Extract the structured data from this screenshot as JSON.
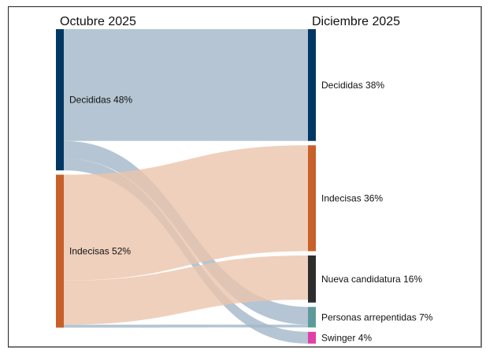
{
  "chart_data": {
    "type": "sankey",
    "title": "",
    "columns": [
      "Octubre 2025",
      "Diciembre 2025"
    ],
    "nodes": [
      {
        "id": "oct_decididas",
        "column": 0,
        "label": "Decididas 48%",
        "value": 48,
        "color": "#003863"
      },
      {
        "id": "oct_indecisas",
        "column": 0,
        "label": "Indecisas 52%",
        "value": 52,
        "color": "#c8602a"
      },
      {
        "id": "dic_decididas",
        "column": 1,
        "label": "Decididas 38%",
        "value": 38,
        "color": "#003863"
      },
      {
        "id": "dic_indecisas",
        "column": 1,
        "label": "Indecisas 36%",
        "value": 36,
        "color": "#c8602a"
      },
      {
        "id": "dic_nueva",
        "column": 1,
        "label": "Nueva candidatura 16%",
        "value": 16,
        "color": "#2d2d2d"
      },
      {
        "id": "dic_arrepentidas",
        "column": 1,
        "label": "Personas arrepentidas 7%",
        "value": 7,
        "color": "#5f9a9a"
      },
      {
        "id": "dic_swinger",
        "column": 1,
        "label": "Swinger 4%",
        "value": 4,
        "color": "#e040a8"
      }
    ],
    "links": [
      {
        "source": "oct_decididas",
        "target": "dic_decididas",
        "value": 38,
        "color": "#a3b6c8"
      },
      {
        "source": "oct_decididas",
        "target": "dic_arrepentidas",
        "value": 6,
        "color": "#a3b6c8"
      },
      {
        "source": "oct_decididas",
        "target": "dic_swinger",
        "value": 4,
        "color": "#a3b6c8"
      },
      {
        "source": "oct_indecisas",
        "target": "dic_indecisas",
        "value": 36,
        "color": "#ebc4ad"
      },
      {
        "source": "oct_indecisas",
        "target": "dic_nueva",
        "value": 15,
        "color": "#ebc4ad"
      },
      {
        "source": "oct_indecisas",
        "target": "dic_arrepentidas",
        "value": 1,
        "color": "#a3b6c8"
      }
    ]
  }
}
